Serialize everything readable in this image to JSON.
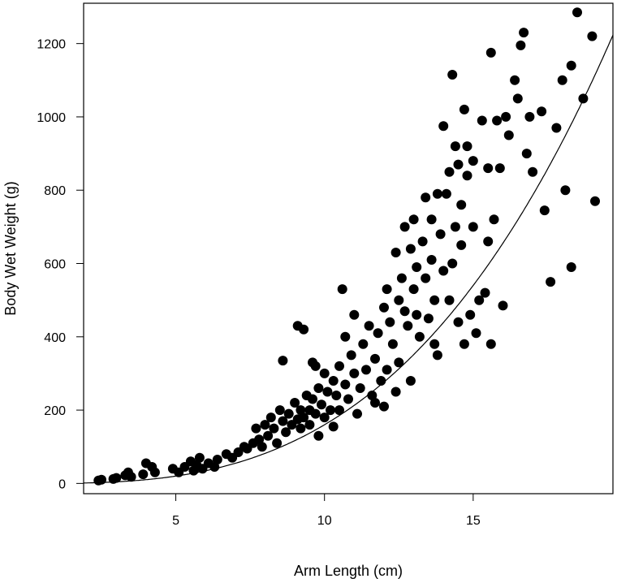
{
  "chart_data": {
    "type": "scatter",
    "title": "",
    "xlabel": "Arm Length (cm)",
    "ylabel": "Body Wet Weight (g)",
    "xlim": [
      1.9,
      19.7
    ],
    "ylim": [
      -28,
      1310
    ],
    "xticks": [
      5,
      10,
      15
    ],
    "xtick_labels": [
      "5",
      "10",
      "15"
    ],
    "yticks": [
      0,
      200,
      400,
      600,
      800,
      1000,
      1200
    ],
    "ytick_labels": [
      "0",
      "200",
      "400",
      "600",
      "800",
      "1000",
      "1200"
    ],
    "grid": false,
    "legend": "none",
    "point_color": "#000000",
    "fit_curve": {
      "type": "power",
      "a": 0.16,
      "b": 3.0,
      "color": "#000000"
    },
    "points": [
      [
        2.4,
        8
      ],
      [
        2.5,
        10
      ],
      [
        2.9,
        12
      ],
      [
        3.0,
        15
      ],
      [
        3.3,
        22
      ],
      [
        3.4,
        30
      ],
      [
        3.5,
        18
      ],
      [
        3.9,
        25
      ],
      [
        4.0,
        55
      ],
      [
        4.2,
        45
      ],
      [
        4.3,
        30
      ],
      [
        4.9,
        40
      ],
      [
        5.1,
        30
      ],
      [
        5.3,
        45
      ],
      [
        5.5,
        60
      ],
      [
        5.6,
        35
      ],
      [
        5.7,
        50
      ],
      [
        5.8,
        70
      ],
      [
        5.9,
        40
      ],
      [
        6.1,
        55
      ],
      [
        6.3,
        45
      ],
      [
        6.4,
        65
      ],
      [
        6.7,
        80
      ],
      [
        6.9,
        70
      ],
      [
        7.1,
        85
      ],
      [
        7.3,
        100
      ],
      [
        7.4,
        95
      ],
      [
        7.6,
        110
      ],
      [
        7.7,
        150
      ],
      [
        7.8,
        120
      ],
      [
        7.9,
        100
      ],
      [
        8.0,
        160
      ],
      [
        8.1,
        130
      ],
      [
        8.2,
        180
      ],
      [
        8.3,
        150
      ],
      [
        8.4,
        110
      ],
      [
        8.5,
        200
      ],
      [
        8.6,
        170
      ],
      [
        8.6,
        335
      ],
      [
        8.7,
        140
      ],
      [
        8.8,
        190
      ],
      [
        8.9,
        160
      ],
      [
        9.0,
        220
      ],
      [
        9.1,
        175
      ],
      [
        9.1,
        430
      ],
      [
        9.2,
        150
      ],
      [
        9.2,
        200
      ],
      [
        9.3,
        180
      ],
      [
        9.3,
        420
      ],
      [
        9.4,
        240
      ],
      [
        9.5,
        200
      ],
      [
        9.5,
        160
      ],
      [
        9.6,
        330
      ],
      [
        9.6,
        230
      ],
      [
        9.7,
        190
      ],
      [
        9.7,
        320
      ],
      [
        9.8,
        260
      ],
      [
        9.8,
        130
      ],
      [
        9.9,
        215
      ],
      [
        10.0,
        300
      ],
      [
        10.0,
        180
      ],
      [
        10.1,
        250
      ],
      [
        10.2,
        200
      ],
      [
        10.3,
        280
      ],
      [
        10.3,
        155
      ],
      [
        10.4,
        240
      ],
      [
        10.5,
        320
      ],
      [
        10.5,
        200
      ],
      [
        10.6,
        530
      ],
      [
        10.7,
        270
      ],
      [
        10.7,
        400
      ],
      [
        10.8,
        230
      ],
      [
        10.9,
        350
      ],
      [
        11.0,
        300
      ],
      [
        11.0,
        460
      ],
      [
        11.1,
        190
      ],
      [
        11.2,
        260
      ],
      [
        11.3,
        380
      ],
      [
        11.4,
        310
      ],
      [
        11.5,
        430
      ],
      [
        11.6,
        240
      ],
      [
        11.7,
        340
      ],
      [
        11.7,
        220
      ],
      [
        11.8,
        410
      ],
      [
        11.9,
        280
      ],
      [
        12.0,
        480
      ],
      [
        12.0,
        210
      ],
      [
        12.1,
        530
      ],
      [
        12.1,
        310
      ],
      [
        12.2,
        440
      ],
      [
        12.3,
        380
      ],
      [
        12.4,
        630
      ],
      [
        12.4,
        250
      ],
      [
        12.5,
        500
      ],
      [
        12.5,
        330
      ],
      [
        12.6,
        560
      ],
      [
        12.7,
        470
      ],
      [
        12.7,
        700
      ],
      [
        12.8,
        430
      ],
      [
        12.9,
        640
      ],
      [
        12.9,
        280
      ],
      [
        13.0,
        720
      ],
      [
        13.0,
        530
      ],
      [
        13.1,
        460
      ],
      [
        13.1,
        590
      ],
      [
        13.2,
        400
      ],
      [
        13.3,
        660
      ],
      [
        13.4,
        780
      ],
      [
        13.4,
        560
      ],
      [
        13.5,
        450
      ],
      [
        13.6,
        720
      ],
      [
        13.6,
        610
      ],
      [
        13.7,
        380
      ],
      [
        13.7,
        500
      ],
      [
        13.8,
        790
      ],
      [
        13.8,
        350
      ],
      [
        13.9,
        680
      ],
      [
        14.0,
        975
      ],
      [
        14.0,
        580
      ],
      [
        14.1,
        790
      ],
      [
        14.2,
        500
      ],
      [
        14.2,
        850
      ],
      [
        14.3,
        1115
      ],
      [
        14.3,
        600
      ],
      [
        14.4,
        920
      ],
      [
        14.4,
        700
      ],
      [
        14.5,
        870
      ],
      [
        14.5,
        440
      ],
      [
        14.6,
        650
      ],
      [
        14.6,
        760
      ],
      [
        14.7,
        1020
      ],
      [
        14.7,
        380
      ],
      [
        14.8,
        920
      ],
      [
        14.8,
        840
      ],
      [
        14.9,
        460
      ],
      [
        15.0,
        880
      ],
      [
        15.0,
        700
      ],
      [
        15.1,
        410
      ],
      [
        15.2,
        500
      ],
      [
        15.3,
        990
      ],
      [
        15.4,
        520
      ],
      [
        15.5,
        860
      ],
      [
        15.5,
        660
      ],
      [
        15.6,
        1175
      ],
      [
        15.6,
        380
      ],
      [
        15.7,
        720
      ],
      [
        15.8,
        990
      ],
      [
        15.9,
        860
      ],
      [
        16.0,
        485
      ],
      [
        16.1,
        1000
      ],
      [
        16.2,
        950
      ],
      [
        16.4,
        1100
      ],
      [
        16.5,
        1050
      ],
      [
        16.6,
        1195
      ],
      [
        16.7,
        1230
      ],
      [
        16.8,
        900
      ],
      [
        16.9,
        1000
      ],
      [
        17.0,
        850
      ],
      [
        17.3,
        1015
      ],
      [
        17.4,
        745
      ],
      [
        17.6,
        550
      ],
      [
        17.8,
        970
      ],
      [
        18.0,
        1100
      ],
      [
        18.1,
        800
      ],
      [
        18.3,
        1140
      ],
      [
        18.3,
        590
      ],
      [
        18.5,
        1285
      ],
      [
        18.7,
        1050
      ],
      [
        19.0,
        1220
      ],
      [
        19.1,
        770
      ]
    ]
  }
}
